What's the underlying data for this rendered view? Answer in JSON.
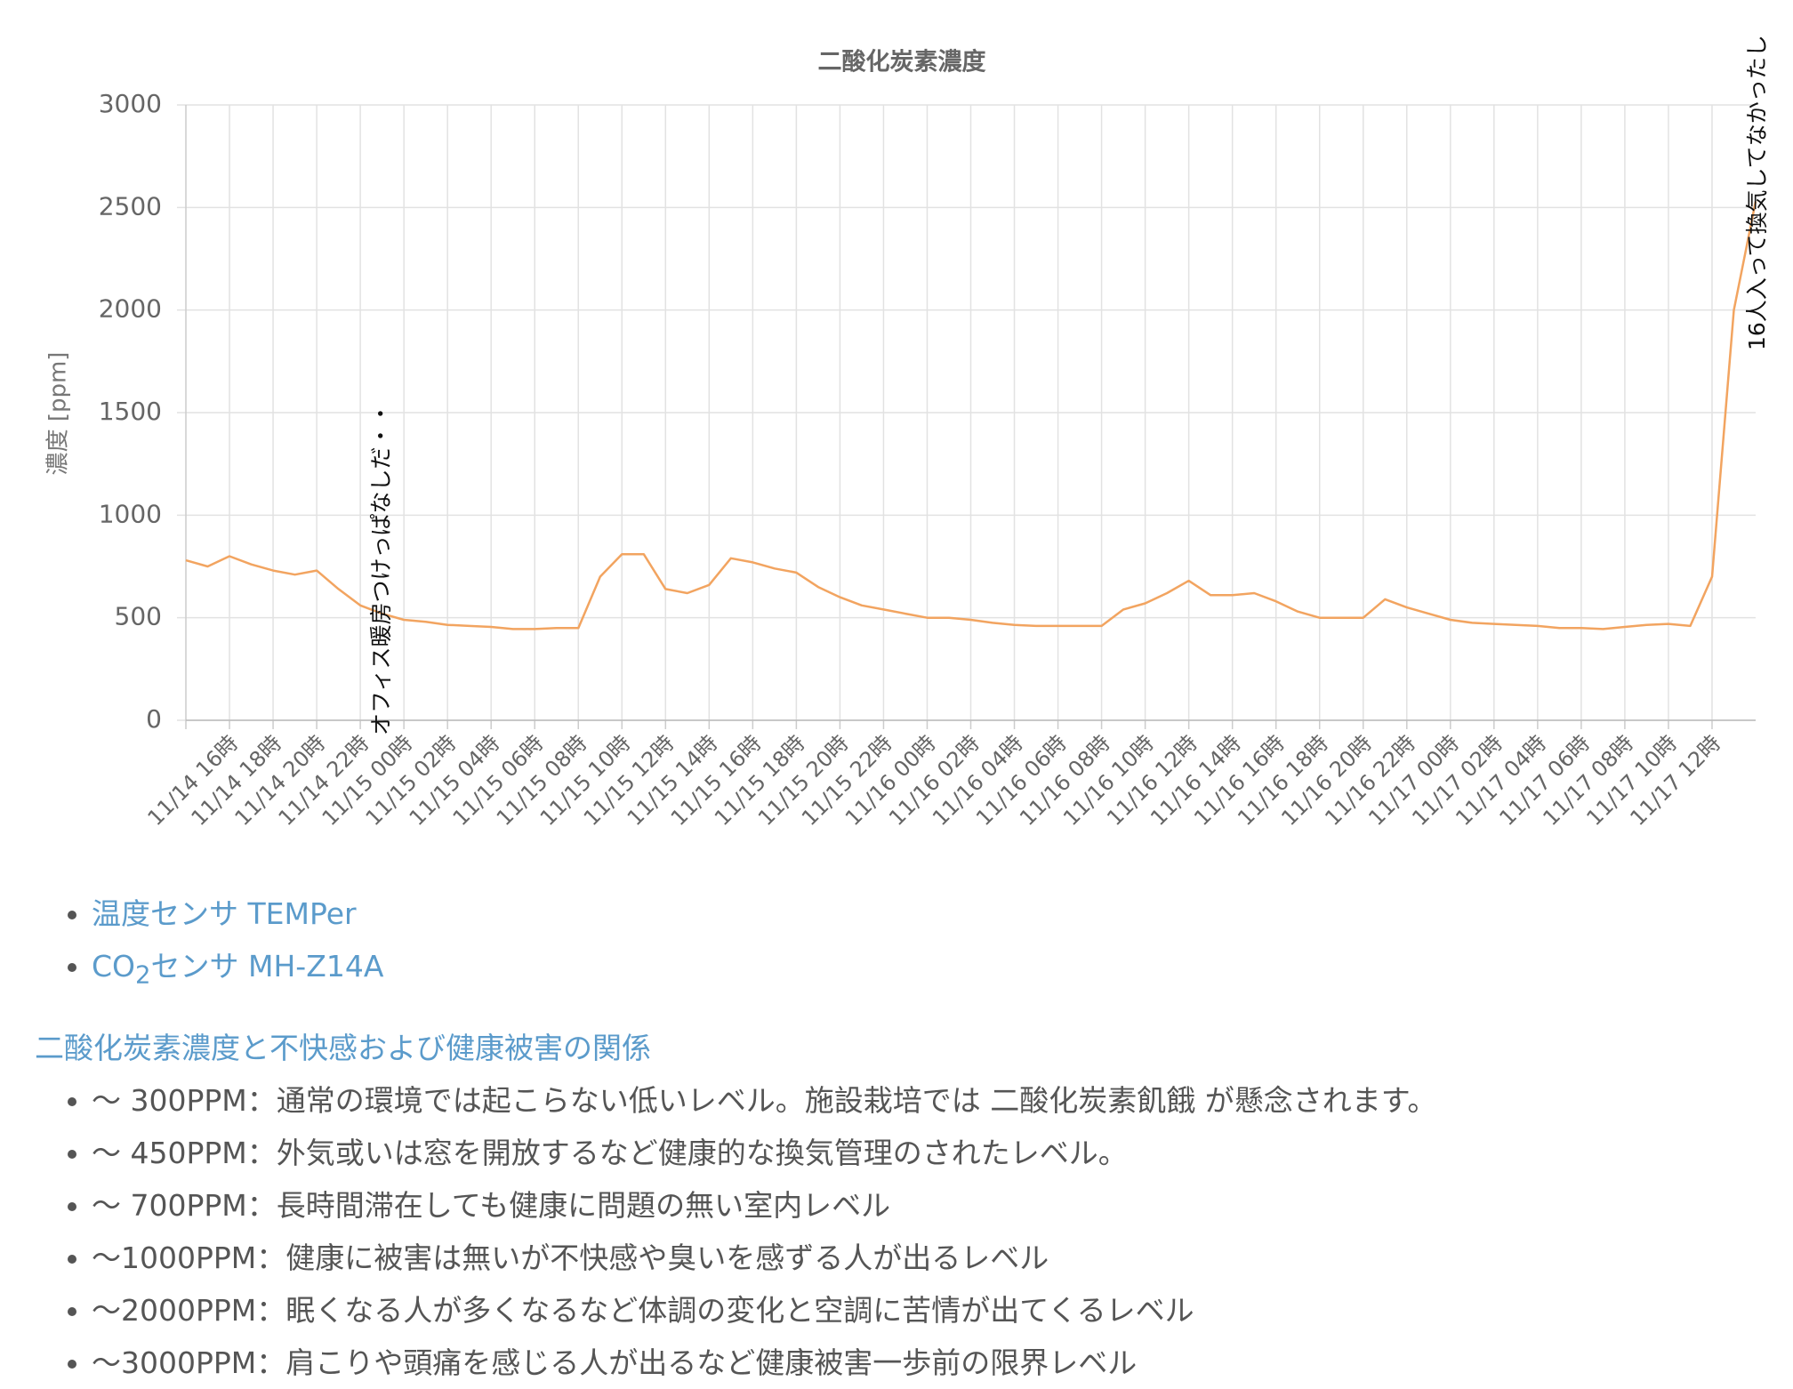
{
  "chart_data": {
    "type": "line",
    "title": "二酸化炭素濃度",
    "ylabel": "濃度 [ppm]",
    "color": "#f2a460",
    "grid": true,
    "ylim": [
      0,
      3000
    ],
    "yticks": [
      0,
      500,
      1000,
      1500,
      2000,
      2500,
      3000
    ],
    "categories": [
      null,
      null,
      "11/14 16時",
      null,
      "11/14 18時",
      null,
      "11/14 20時",
      null,
      "11/14 22時",
      null,
      "11/15 00時",
      null,
      "11/15 02時",
      null,
      "11/15 04時",
      null,
      "11/15 06時",
      null,
      "11/15 08時",
      null,
      "11/15 10時",
      null,
      "11/15 12時",
      null,
      "11/15 14時",
      null,
      "11/15 16時",
      null,
      "11/15 18時",
      null,
      "11/15 20時",
      null,
      "11/15 22時",
      null,
      "11/16 00時",
      null,
      "11/16 02時",
      null,
      "11/16 04時",
      null,
      "11/16 06時",
      null,
      "11/16 08時",
      null,
      "11/16 10時",
      null,
      "11/16 12時",
      null,
      "11/16 14時",
      null,
      "11/16 16時",
      null,
      "11/16 18時",
      null,
      "11/16 20時",
      null,
      "11/16 22時",
      null,
      "11/17 00時",
      null,
      "11/17 02時",
      null,
      "11/17 04時",
      null,
      "11/17 06時",
      null,
      "11/17 08時",
      null,
      "11/17 10時",
      null,
      "11/17 12時",
      null,
      null
    ],
    "values": [
      780,
      750,
      800,
      760,
      730,
      710,
      730,
      640,
      560,
      520,
      490,
      480,
      465,
      460,
      455,
      445,
      445,
      450,
      450,
      700,
      810,
      810,
      640,
      620,
      660,
      790,
      770,
      740,
      720,
      650,
      600,
      560,
      540,
      520,
      500,
      500,
      490,
      475,
      465,
      460,
      460,
      460,
      460,
      540,
      570,
      620,
      680,
      610,
      610,
      620,
      580,
      530,
      500,
      500,
      500,
      590,
      550,
      520,
      490,
      475,
      470,
      465,
      460,
      450,
      450,
      445,
      455,
      465,
      470,
      460,
      700,
      2000,
      2530
    ],
    "annotations": [
      "オフィス暖房つけっぱなしだ・・",
      "16人入って換気してなかったし"
    ]
  },
  "sensors": [
    {
      "text": "温度センサ TEMPer"
    },
    {
      "prefix": "CO",
      "sub": "2",
      "rest": "センサ MH-Z14A"
    }
  ],
  "relation": {
    "heading": "二酸化炭素濃度と不快感および健康被害の関係",
    "items": [
      "〜 300PPM：通常の環境では起こらない低いレベル。施設栽培では 二酸化炭素飢餓 が懸念されます。",
      "〜 450PPM：外気或いは窓を開放するなど健康的な換気管理のされたレベル。",
      "〜 700PPM：長時間滞在しても健康に問題の無い室内レベル",
      "〜1000PPM：健康に被害は無いが不快感や臭いを感ずる人が出るレベル",
      "〜2000PPM：眠くなる人が多くなるなど体調の変化と空調に苦情が出てくるレベル",
      "〜3000PPM：肩こりや頭痛を感じる人が出るなど健康被害一歩前の限界レベル"
    ]
  }
}
